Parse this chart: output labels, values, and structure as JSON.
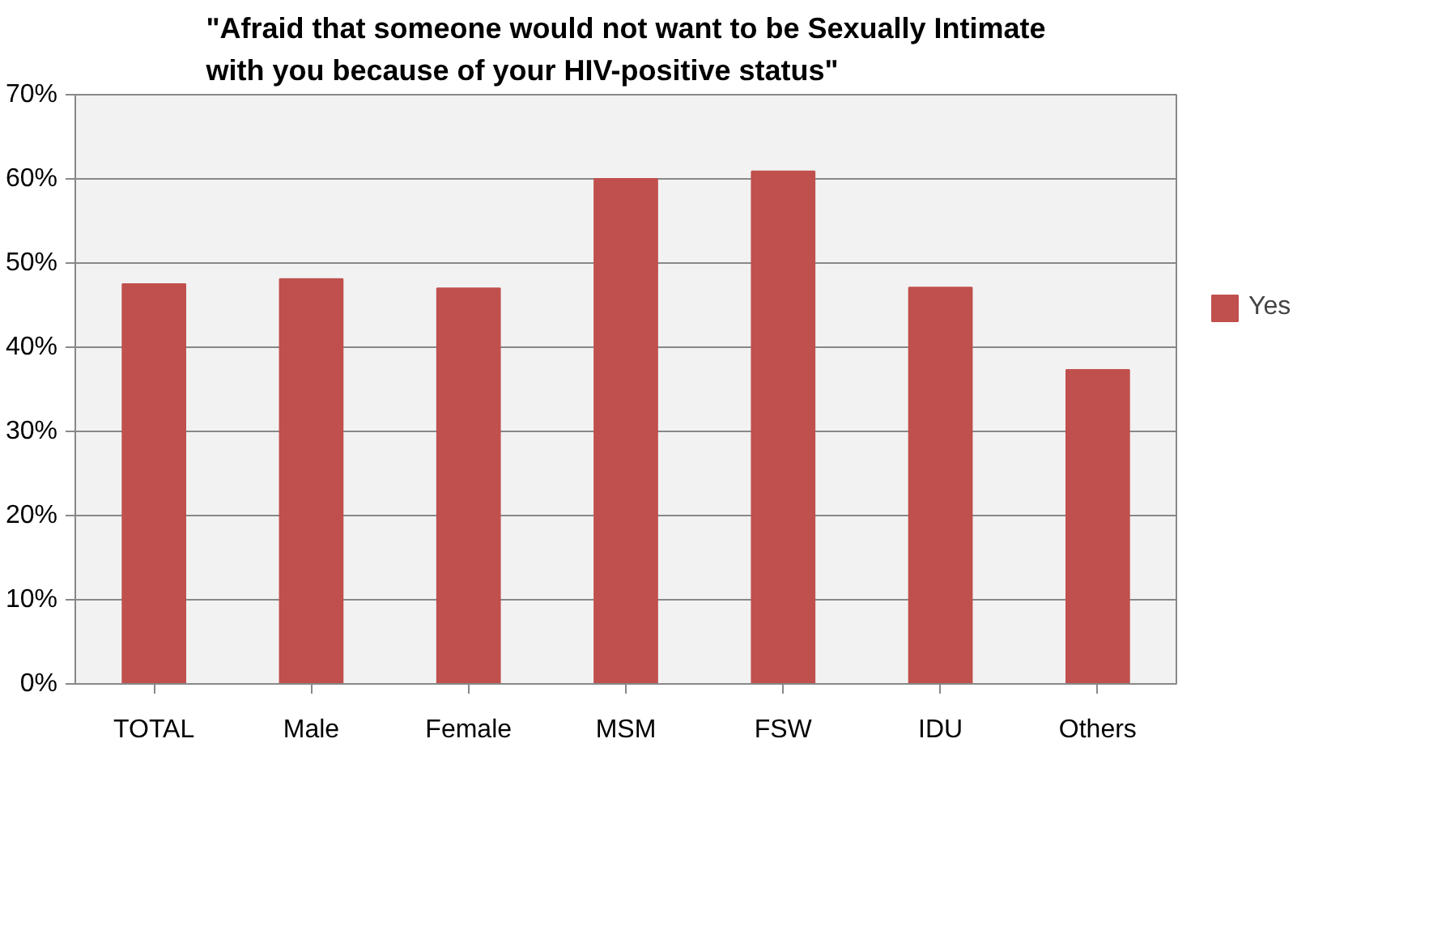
{
  "chart_data": {
    "type": "bar",
    "title": "\"Afraid that someone would not want to be Sexually Intimate with you because of your HIV-positive status\"",
    "categories": [
      "TOTAL",
      "Male",
      "Female",
      "MSM",
      "FSW",
      "IDU",
      "Others"
    ],
    "series": [
      {
        "name": "Yes",
        "color": "#c0504d",
        "values": [
          47.5,
          48.1,
          47.0,
          60.0,
          60.9,
          47.1,
          37.3
        ]
      }
    ],
    "ylim": [
      0,
      70
    ],
    "yticks": [
      {
        "value": 0,
        "label": "0%"
      },
      {
        "value": 10,
        "label": "10%"
      },
      {
        "value": 20,
        "label": "20%"
      },
      {
        "value": 30,
        "label": "30%"
      },
      {
        "value": 40,
        "label": "40%"
      },
      {
        "value": 50,
        "label": "50%"
      },
      {
        "value": 60,
        "label": "60%"
      },
      {
        "value": 70,
        "label": "70%"
      }
    ],
    "grid": "y",
    "legend": "right"
  }
}
